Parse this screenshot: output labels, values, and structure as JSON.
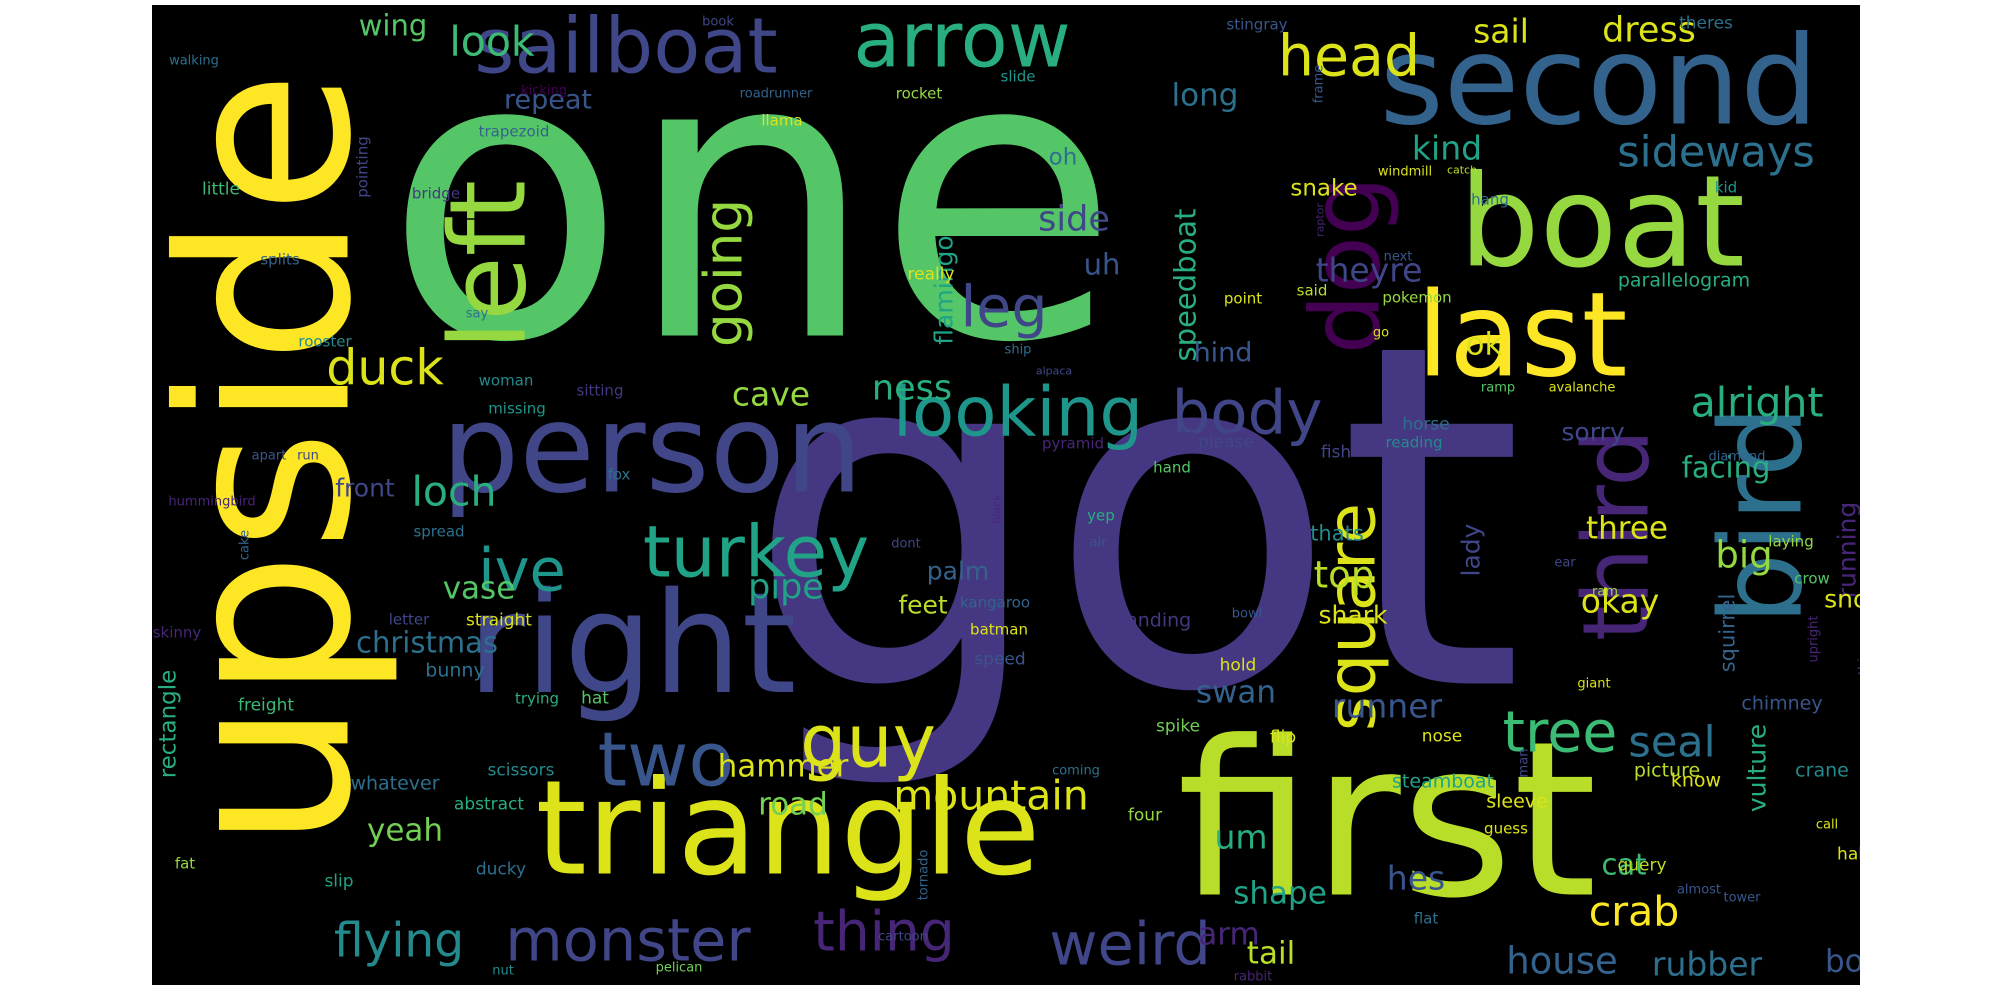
{
  "image": {
    "kind": "word cloud",
    "background": "#000000",
    "canvas_background": "#ffffff",
    "colormap": "viridis"
  },
  "words": [
    {
      "text": "one",
      "color": "#55c667"
    },
    {
      "text": "got",
      "color": "#453781"
    },
    {
      "text": "first",
      "color": "#b8de29"
    },
    {
      "text": "upside",
      "color": "#fde725"
    },
    {
      "text": "second",
      "color": "#33638d"
    },
    {
      "text": "triangle",
      "color": "#dce319"
    },
    {
      "text": "person",
      "color": "#404688"
    },
    {
      "text": "right",
      "color": "#3f4788"
    },
    {
      "text": "boat",
      "color": "#95d840"
    },
    {
      "text": "last",
      "color": "#fde725"
    },
    {
      "text": "bird",
      "color": "#2d708e"
    },
    {
      "text": "third",
      "color": "#482677"
    },
    {
      "text": "left",
      "color": "#95d840"
    },
    {
      "text": "dog",
      "color": "#440154"
    },
    {
      "text": "sailboat",
      "color": "#3f4788"
    },
    {
      "text": "arrow",
      "color": "#29af7f"
    },
    {
      "text": "looking",
      "color": "#1f968b"
    },
    {
      "text": "turkey",
      "color": "#20a386"
    },
    {
      "text": "guy",
      "color": "#dce319"
    },
    {
      "text": "two",
      "color": "#39568c"
    },
    {
      "text": "monster",
      "color": "#404688"
    },
    {
      "text": "thing",
      "color": "#482677"
    },
    {
      "text": "weird",
      "color": "#404688"
    },
    {
      "text": "square",
      "color": "#dce319"
    },
    {
      "text": "tree",
      "color": "#3cbb75"
    },
    {
      "text": "body",
      "color": "#404688"
    },
    {
      "text": "head",
      "color": "#dce319"
    },
    {
      "text": "ive",
      "color": "#1f968b"
    },
    {
      "text": "flying",
      "color": "#238a8d"
    },
    {
      "text": "mountain",
      "color": "#dce319"
    },
    {
      "text": "leg",
      "color": "#3f4788"
    },
    {
      "text": "going",
      "color": "#95d840"
    },
    {
      "text": "duck",
      "color": "#dce319"
    },
    {
      "text": "look",
      "color": "#3cbb75"
    },
    {
      "text": "sideways",
      "color": "#2d708e"
    },
    {
      "text": "alright",
      "color": "#29af7f"
    },
    {
      "text": "crab",
      "color": "#fde725"
    },
    {
      "text": "house",
      "color": "#33638d"
    },
    {
      "text": "swan",
      "color": "#33638d"
    },
    {
      "text": "runner",
      "color": "#39568c"
    },
    {
      "text": "seal",
      "color": "#2d708e"
    },
    {
      "text": "cave",
      "color": "#95d840"
    },
    {
      "text": "ness",
      "color": "#29af7f"
    },
    {
      "text": "loch",
      "color": "#29af7f"
    },
    {
      "text": "top",
      "color": "#b8de29"
    },
    {
      "text": "pipe",
      "color": "#20a386"
    },
    {
      "text": "vase",
      "color": "#55c667"
    },
    {
      "text": "big",
      "color": "#95d840"
    },
    {
      "text": "okay",
      "color": "#dce319"
    },
    {
      "text": "three",
      "color": "#dce319"
    },
    {
      "text": "christmas",
      "color": "#2d708e"
    },
    {
      "text": "hammer",
      "color": "#dce319"
    },
    {
      "text": "road",
      "color": "#73d055"
    },
    {
      "text": "yeah",
      "color": "#73d055"
    },
    {
      "text": "um",
      "color": "#29af7f"
    },
    {
      "text": "shape",
      "color": "#20a386"
    },
    {
      "text": "tail",
      "color": "#b8de29"
    },
    {
      "text": "arm",
      "color": "#482677"
    },
    {
      "text": "hes",
      "color": "#39568c"
    },
    {
      "text": "rubber",
      "color": "#2d708e"
    },
    {
      "text": "bottom",
      "color": "#39568c"
    },
    {
      "text": "cat",
      "color": "#3cbb75"
    },
    {
      "text": "sail",
      "color": "#dce319"
    },
    {
      "text": "dress",
      "color": "#dce319"
    },
    {
      "text": "kind",
      "color": "#20a386"
    },
    {
      "text": "long",
      "color": "#2d708e"
    },
    {
      "text": "repeat",
      "color": "#39568c"
    },
    {
      "text": "wing",
      "color": "#55c667"
    },
    {
      "text": "side",
      "color": "#3f4788"
    },
    {
      "text": "uh",
      "color": "#39568c"
    },
    {
      "text": "speedboat",
      "color": "#29af7f"
    },
    {
      "text": "flamingo",
      "color": "#20a386"
    },
    {
      "text": "theyre",
      "color": "#404688"
    },
    {
      "text": "ok",
      "color": "#dce319"
    },
    {
      "text": "hind",
      "color": "#39568c"
    },
    {
      "text": "corner",
      "color": "#453781"
    },
    {
      "text": "palm",
      "color": "#33638d"
    },
    {
      "text": "feet",
      "color": "#b8de29"
    },
    {
      "text": "front",
      "color": "#404688"
    },
    {
      "text": "facing",
      "color": "#29af7f"
    },
    {
      "text": "sorry",
      "color": "#3f4788"
    },
    {
      "text": "running",
      "color": "#482677"
    },
    {
      "text": "holding",
      "color": "#55c667"
    },
    {
      "text": "apple",
      "color": "#39568c"
    },
    {
      "text": "lady",
      "color": "#404688"
    },
    {
      "text": "snout",
      "color": "#dce319"
    },
    {
      "text": "squirrel",
      "color": "#33638d"
    },
    {
      "text": "vulture",
      "color": "#29af7f"
    },
    {
      "text": "rectangle",
      "color": "#29af7f"
    },
    {
      "text": "shark",
      "color": "#dce319"
    },
    {
      "text": "thats",
      "color": "#238a8d"
    },
    {
      "text": "snake",
      "color": "#dce319"
    },
    {
      "text": "oh",
      "color": "#2d708e"
    },
    {
      "text": "parallelogram",
      "color": "#29af7f"
    },
    {
      "text": "chimney",
      "color": "#39568c"
    },
    {
      "text": "know",
      "color": "#dce319"
    },
    {
      "text": "crane",
      "color": "#238a8d"
    },
    {
      "text": "picture",
      "color": "#b8de29"
    },
    {
      "text": "steamboat",
      "color": "#20a386"
    },
    {
      "text": "sleeve",
      "color": "#dce319"
    },
    {
      "text": "whatever",
      "color": "#2d708e"
    },
    {
      "text": "abstract",
      "color": "#29af7f"
    },
    {
      "text": "scissors",
      "color": "#238a8d"
    },
    {
      "text": "bunny",
      "color": "#2d708e"
    },
    {
      "text": "straight",
      "color": "#dce319"
    },
    {
      "text": "letter",
      "color": "#404688"
    },
    {
      "text": "standing",
      "color": "#453781"
    },
    {
      "text": "kangaroo",
      "color": "#33638d"
    },
    {
      "text": "batman",
      "color": "#dce319"
    },
    {
      "text": "speed",
      "color": "#39568c"
    },
    {
      "text": "hold",
      "color": "#dce319"
    },
    {
      "text": "spike",
      "color": "#73d055"
    },
    {
      "text": "four",
      "color": "#95d840"
    },
    {
      "text": "flip",
      "color": "#dce319"
    },
    {
      "text": "nose",
      "color": "#dce319"
    },
    {
      "text": "query",
      "color": "#b8de29"
    },
    {
      "text": "half",
      "color": "#dce319"
    },
    {
      "text": "back",
      "color": "#b8de29"
    },
    {
      "text": "guess",
      "color": "#dce319"
    },
    {
      "text": "flat",
      "color": "#2d708e"
    },
    {
      "text": "slip",
      "color": "#20a386"
    },
    {
      "text": "ducky",
      "color": "#2d708e"
    },
    {
      "text": "fat",
      "color": "#95d840"
    },
    {
      "text": "freight",
      "color": "#3cbb75"
    },
    {
      "text": "trying",
      "color": "#29af7f"
    },
    {
      "text": "hat",
      "color": "#55c667"
    },
    {
      "text": "skinny",
      "color": "#482677"
    },
    {
      "text": "little",
      "color": "#3cbb75"
    },
    {
      "text": "splits",
      "color": "#33638d"
    },
    {
      "text": "rooster",
      "color": "#238a8d"
    },
    {
      "text": "woman",
      "color": "#238a8d"
    },
    {
      "text": "missing",
      "color": "#1f968b"
    },
    {
      "text": "sitting",
      "color": "#453781"
    },
    {
      "text": "really",
      "color": "#dce319"
    },
    {
      "text": "point",
      "color": "#dce319"
    },
    {
      "text": "said",
      "color": "#b8de29"
    },
    {
      "text": "please",
      "color": "#404688"
    },
    {
      "text": "fish",
      "color": "#404688"
    },
    {
      "text": "reading",
      "color": "#238a8d"
    },
    {
      "text": "pyramid",
      "color": "#482677"
    },
    {
      "text": "hand",
      "color": "#55c667"
    },
    {
      "text": "yep",
      "color": "#29af7f"
    },
    {
      "text": "fox",
      "color": "#2d708e"
    },
    {
      "text": "spread",
      "color": "#2d708e"
    },
    {
      "text": "ram",
      "color": "#95d840"
    },
    {
      "text": "ear",
      "color": "#404688"
    },
    {
      "text": "laying",
      "color": "#95d840"
    },
    {
      "text": "crow",
      "color": "#55c667"
    },
    {
      "text": "air",
      "color": "#39568c"
    },
    {
      "text": "dont",
      "color": "#3f4788"
    },
    {
      "text": "hummingbird",
      "color": "#482677"
    },
    {
      "text": "apart",
      "color": "#39568c"
    },
    {
      "text": "run",
      "color": "#404688"
    },
    {
      "text": "cake",
      "color": "#33638d"
    },
    {
      "text": "black",
      "color": "#482677"
    },
    {
      "text": "tornado",
      "color": "#33638d"
    },
    {
      "text": "cartoon",
      "color": "#404688"
    },
    {
      "text": "pelican",
      "color": "#73d055"
    },
    {
      "text": "nut",
      "color": "#238a8d"
    },
    {
      "text": "rabbit",
      "color": "#482677"
    },
    {
      "text": "tower",
      "color": "#39568c"
    },
    {
      "text": "almost",
      "color": "#39568c"
    },
    {
      "text": "call",
      "color": "#dce319"
    },
    {
      "text": "something",
      "color": "#404688"
    },
    {
      "text": "upright",
      "color": "#482677"
    },
    {
      "text": "giant",
      "color": "#dce319"
    },
    {
      "text": "man",
      "color": "#404688"
    },
    {
      "text": "coming",
      "color": "#2d708e"
    },
    {
      "text": "bowl",
      "color": "#39568c"
    },
    {
      "text": "diamond",
      "color": "#33638d"
    },
    {
      "text": "avalanche",
      "color": "#dce319"
    },
    {
      "text": "ramp",
      "color": "#55c667"
    },
    {
      "text": "shell",
      "color": "#33638d"
    },
    {
      "text": "iron",
      "color": "#33638d"
    },
    {
      "text": "horse",
      "color": "#2d708e"
    },
    {
      "text": "alpaca",
      "color": "#3f4788"
    },
    {
      "text": "ship",
      "color": "#2d708e"
    },
    {
      "text": "go",
      "color": "#dce319"
    },
    {
      "text": "pokemon",
      "color": "#95d840"
    },
    {
      "text": "next",
      "color": "#39568c"
    },
    {
      "text": "hang",
      "color": "#2d708e"
    },
    {
      "text": "kid",
      "color": "#1f968b"
    },
    {
      "text": "catch",
      "color": "#b8de29"
    },
    {
      "text": "windmill",
      "color": "#dce319"
    },
    {
      "text": "raptor",
      "color": "#482677"
    },
    {
      "text": "frame",
      "color": "#39568c"
    },
    {
      "text": "stingray",
      "color": "#39568c"
    },
    {
      "text": "theres",
      "color": "#2d708e"
    },
    {
      "text": "book",
      "color": "#404688"
    },
    {
      "text": "walking",
      "color": "#2d708e"
    },
    {
      "text": "kicking",
      "color": "#440154"
    },
    {
      "text": "roadrunner",
      "color": "#33638d"
    },
    {
      "text": "rocket",
      "color": "#95d840"
    },
    {
      "text": "slide",
      "color": "#1f968b"
    },
    {
      "text": "llama",
      "color": "#dce319"
    },
    {
      "text": "trapezoid",
      "color": "#33638d"
    },
    {
      "text": "pointing",
      "color": "#404688"
    },
    {
      "text": "bridge",
      "color": "#453781"
    },
    {
      "text": "say",
      "color": "#2d708e"
    }
  ]
}
